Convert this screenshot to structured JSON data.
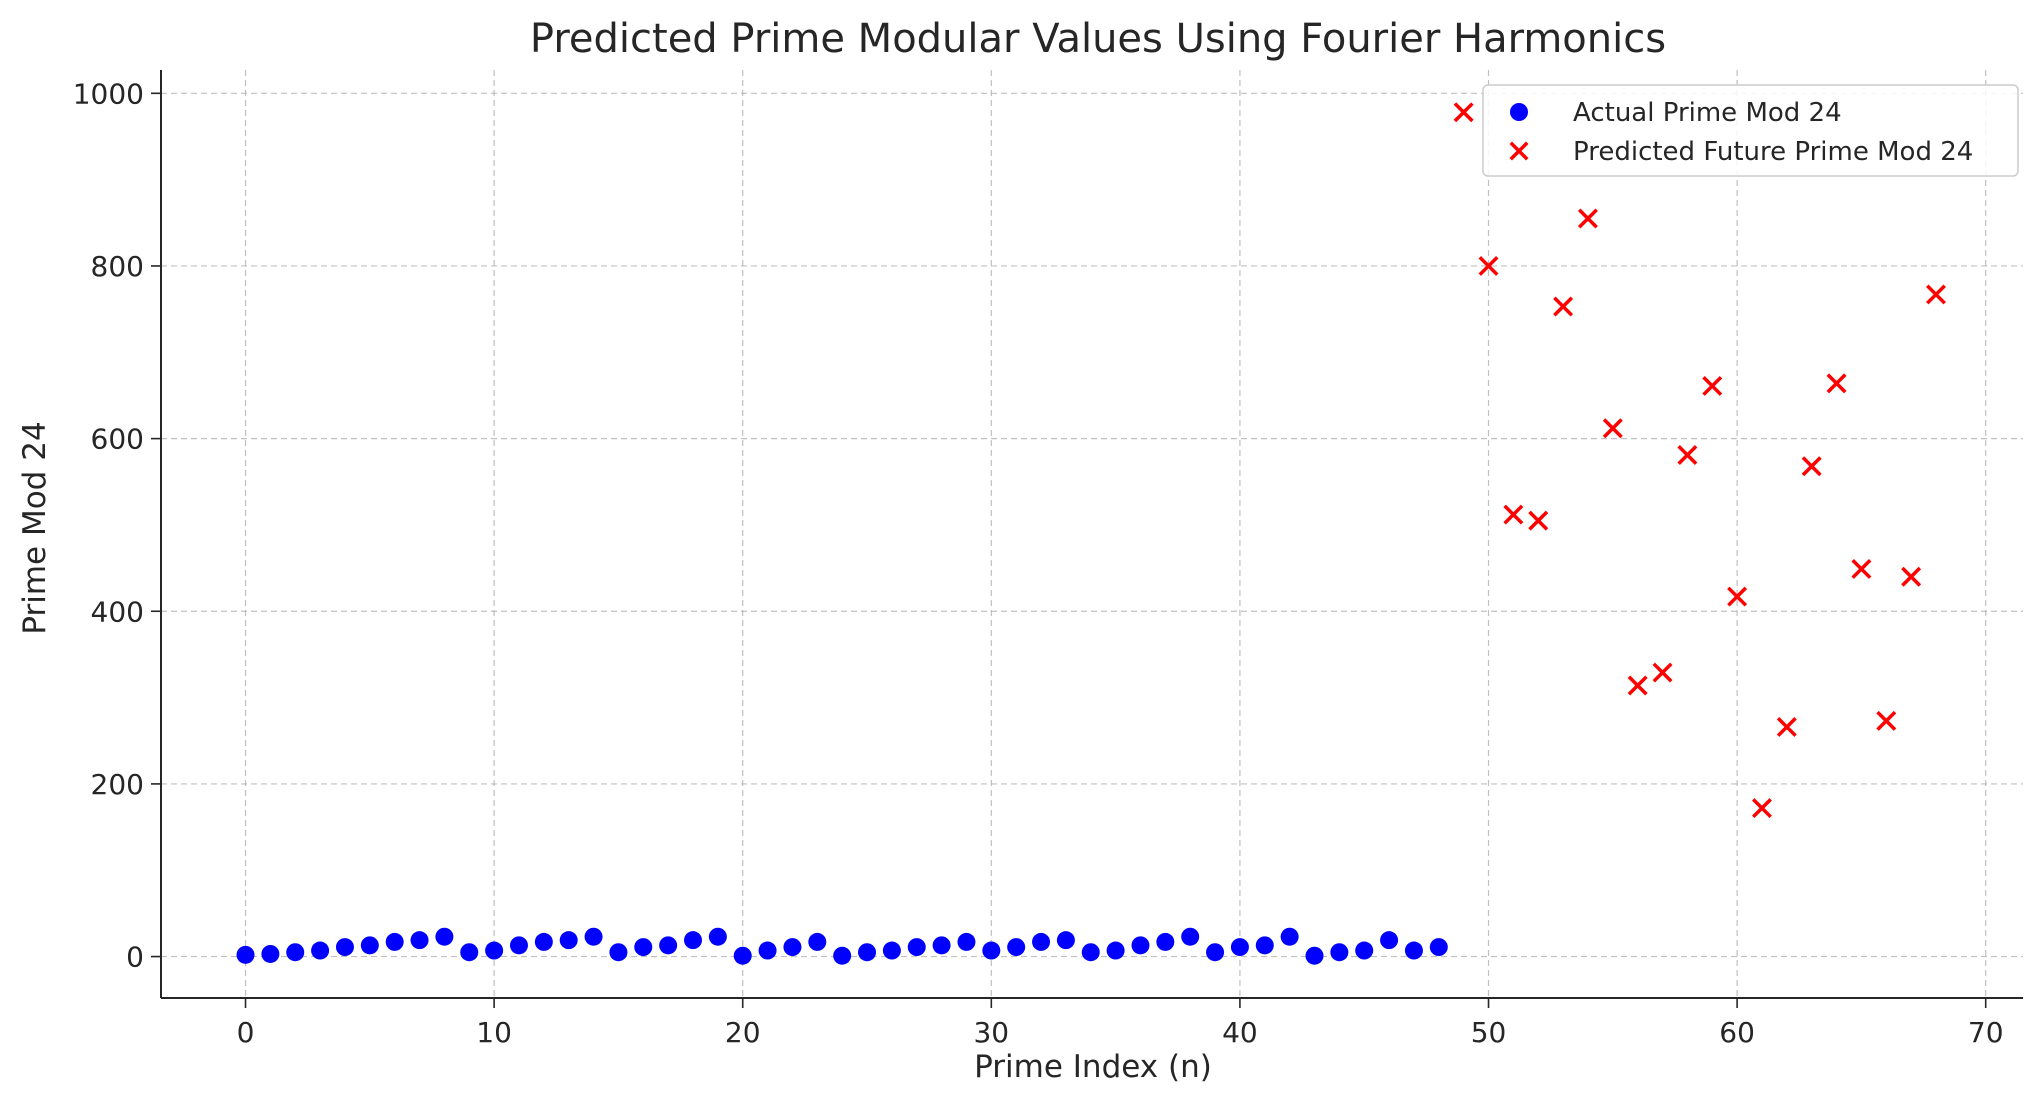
{
  "chart_data": {
    "type": "scatter",
    "title": "Predicted Prime Modular Values Using Fourier Harmonics",
    "xlabel": "Prime Index (n)",
    "ylabel": "Prime Mod 24",
    "xlim": [
      -3.4,
      71.5
    ],
    "ylim": [
      -48,
      1027
    ],
    "xticks": [
      "0",
      "10",
      "20",
      "30",
      "40",
      "50",
      "60",
      "70"
    ],
    "yticks": [
      "0",
      "200",
      "400",
      "600",
      "800",
      "1000"
    ],
    "grid": true,
    "legend_position": "top-right",
    "series": [
      {
        "name": "Actual Prime Mod 24",
        "marker": "circle",
        "color": "#0000ff",
        "x": [
          0,
          1,
          2,
          3,
          4,
          5,
          6,
          7,
          8,
          9,
          10,
          11,
          12,
          13,
          14,
          15,
          16,
          17,
          18,
          19,
          20,
          21,
          22,
          23,
          24,
          25,
          26,
          27,
          28,
          29,
          30,
          31,
          32,
          33,
          34,
          35,
          36,
          37,
          38,
          39,
          40,
          41,
          42,
          43,
          44,
          45,
          46,
          47,
          48
        ],
        "y": [
          2,
          3,
          5,
          7,
          11,
          13,
          17,
          19,
          23,
          5,
          7,
          13,
          17,
          19,
          23,
          5,
          11,
          13,
          19,
          23,
          1,
          7,
          11,
          17,
          1,
          5,
          7,
          11,
          13,
          17,
          7,
          11,
          17,
          19,
          5,
          7,
          13,
          17,
          23,
          5,
          11,
          13,
          23,
          1,
          5,
          7,
          19,
          7,
          11
        ]
      },
      {
        "name": "Predicted Future Prime Mod 24",
        "marker": "x",
        "color": "#ff0000",
        "x": [
          49,
          50,
          51,
          52,
          53,
          54,
          55,
          56,
          57,
          58,
          59,
          60,
          61,
          62,
          63,
          64,
          65,
          66,
          67,
          68
        ],
        "y": [
          978,
          800,
          512,
          505,
          753,
          855,
          612,
          314,
          329,
          581,
          661,
          417,
          172,
          266,
          568,
          664,
          449,
          273,
          440,
          767
        ]
      }
    ]
  }
}
